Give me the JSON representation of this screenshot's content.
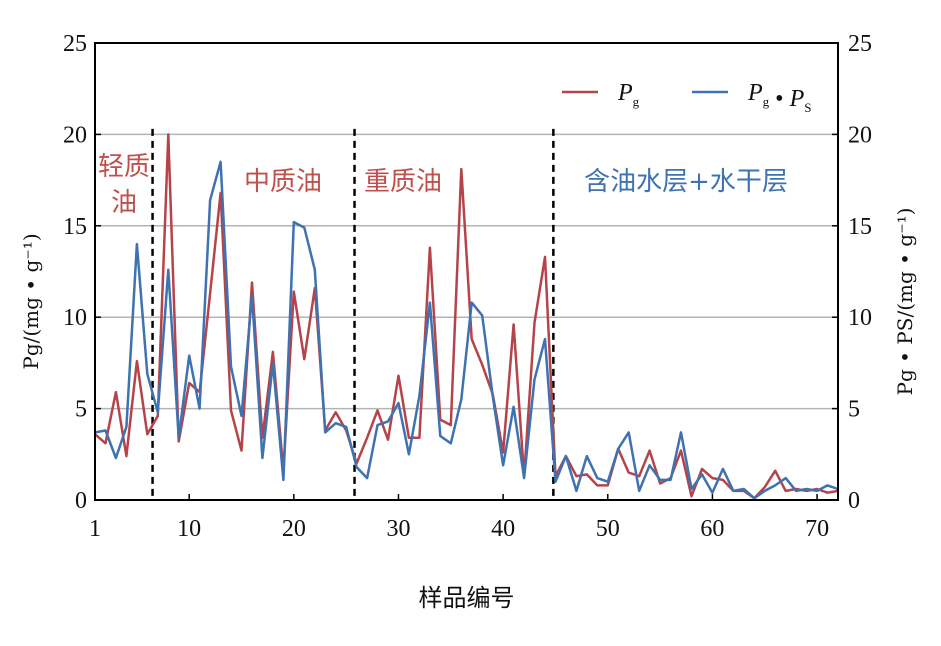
{
  "chart_data": {
    "type": "line",
    "xlabel": "样品编号",
    "ylabel_left": "Pg/(mg • g⁻¹)",
    "ylabel_right": "Pg • PS/(mg • g⁻¹)",
    "xlim": [
      1,
      72
    ],
    "ylim_left": [
      0,
      25
    ],
    "ylim_right": [
      0,
      25
    ],
    "x_ticks": [
      1,
      10,
      20,
      30,
      40,
      50,
      60,
      70
    ],
    "y_ticks": [
      0,
      5,
      10,
      15,
      20,
      25
    ],
    "grid": "horizontal",
    "legend_position": "top-right",
    "x": [
      1,
      2,
      3,
      4,
      5,
      6,
      7,
      8,
      9,
      10,
      11,
      12,
      13,
      14,
      15,
      16,
      17,
      18,
      19,
      20,
      21,
      22,
      23,
      24,
      25,
      26,
      27,
      28,
      29,
      30,
      31,
      32,
      33,
      34,
      35,
      36,
      37,
      38,
      39,
      40,
      41,
      42,
      43,
      44,
      45,
      46,
      47,
      48,
      49,
      50,
      51,
      52,
      53,
      54,
      55,
      56,
      57,
      58,
      59,
      60,
      61,
      62,
      63,
      64,
      65,
      66,
      67,
      68,
      69,
      70,
      71,
      72
    ],
    "series": [
      {
        "name": "Pg",
        "color": "#b5444a",
        "values": [
          3.6,
          3.1,
          5.9,
          2.4,
          7.6,
          3.6,
          4.6,
          20.0,
          3.2,
          6.4,
          5.9,
          11.3,
          16.8,
          4.9,
          2.7,
          11.9,
          3.4,
          8.1,
          1.6,
          11.4,
          7.7,
          11.6,
          3.8,
          4.8,
          3.8,
          2.0,
          3.4,
          4.9,
          3.3,
          6.8,
          3.4,
          3.4,
          13.8,
          4.4,
          4.1,
          18.1,
          8.8,
          7.4,
          5.8,
          2.6,
          9.6,
          1.3,
          9.7,
          13.3,
          1.3,
          2.4,
          1.3,
          1.4,
          0.8,
          0.8,
          2.8,
          1.5,
          1.3,
          2.7,
          0.9,
          1.2,
          2.7,
          0.2,
          1.7,
          1.2,
          1.1,
          0.5,
          0.5,
          0.1,
          0.7,
          1.6,
          0.5,
          0.6,
          0.5,
          0.6,
          0.4,
          0.5
        ]
      },
      {
        "name": "Pg • PS",
        "color": "#3e72b0",
        "values": [
          3.7,
          3.8,
          2.3,
          4.0,
          14.0,
          6.9,
          4.8,
          12.6,
          3.4,
          7.9,
          5.0,
          16.4,
          18.5,
          7.3,
          4.6,
          11.2,
          2.3,
          7.5,
          1.1,
          15.2,
          14.9,
          12.6,
          3.7,
          4.2,
          4.0,
          1.8,
          1.2,
          4.1,
          4.3,
          5.3,
          2.5,
          5.7,
          10.8,
          3.5,
          3.1,
          5.5,
          10.8,
          10.1,
          5.7,
          1.9,
          5.1,
          1.2,
          6.6,
          8.8,
          1.0,
          2.4,
          0.5,
          2.4,
          1.2,
          1.0,
          2.8,
          3.7,
          0.5,
          1.9,
          1.1,
          1.1,
          3.7,
          0.6,
          1.4,
          0.4,
          1.7,
          0.5,
          0.6,
          0.1,
          0.5,
          0.8,
          1.2,
          0.5,
          0.6,
          0.5,
          0.8,
          0.6
        ]
      }
    ],
    "dividers": [
      6.5,
      25.8,
      44.8
    ],
    "regions": [
      {
        "lines": [
          "轻质",
          "油"
        ],
        "color": "#c0504d"
      },
      {
        "lines": [
          "中质油"
        ],
        "color": "#c0504d"
      },
      {
        "lines": [
          "重质油"
        ],
        "color": "#c0504d"
      },
      {
        "lines": [
          "含油水层+水干层"
        ],
        "color": "#3e72b0"
      }
    ]
  }
}
